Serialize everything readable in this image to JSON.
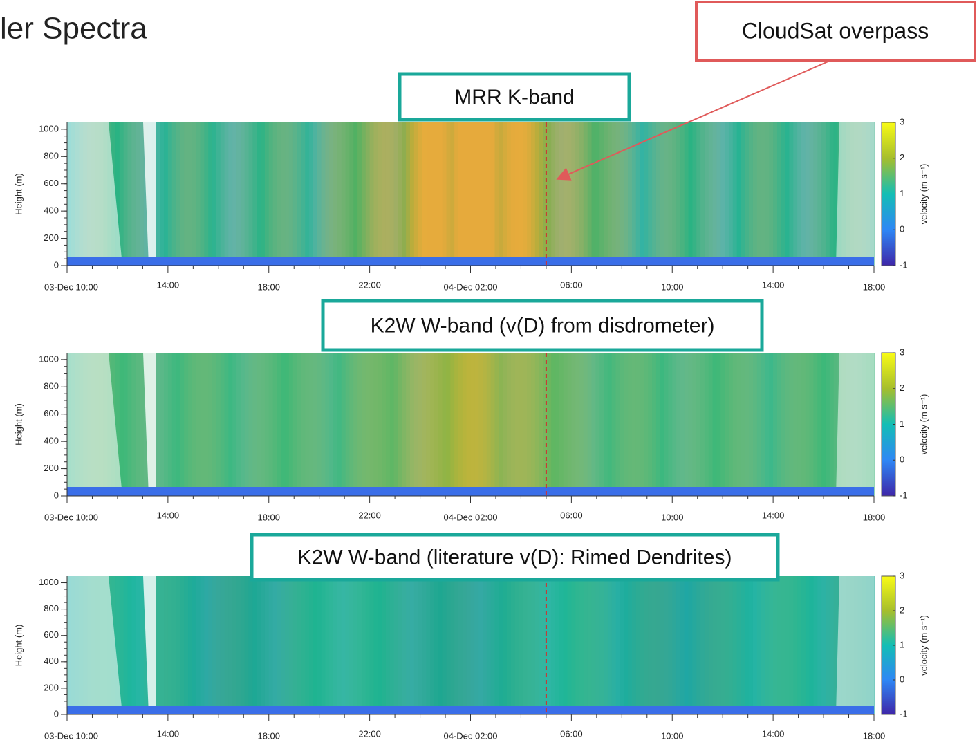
{
  "title": "ler Spectra",
  "annotation": "CloudSat overpass",
  "chart_data": [
    {
      "type": "heatmap",
      "title": "MRR K-band",
      "ylabel": "Height (m)",
      "ylim": [
        0,
        1050
      ],
      "yticks": [
        0,
        200,
        400,
        600,
        800,
        1000
      ],
      "xticks": [
        "03-Dec 10:00",
        "14:00",
        "18:00",
        "22:00",
        "04-Dec 02:00",
        "06:00",
        "10:00",
        "14:00",
        "18:00"
      ],
      "colorbar_label": "velocity (m s⁻¹)",
      "clim": [
        -1,
        3
      ],
      "cticks": [
        -1,
        0,
        1,
        2,
        3
      ]
    },
    {
      "type": "heatmap",
      "title": "K2W W-band (v(D) from disdrometer)",
      "ylabel": "Height (m)",
      "ylim": [
        0,
        1050
      ],
      "yticks": [
        0,
        200,
        400,
        600,
        800,
        1000
      ],
      "xticks": [
        "03-Dec 10:00",
        "14:00",
        "18:00",
        "22:00",
        "04-Dec 02:00",
        "06:00",
        "10:00",
        "14:00",
        "18:00"
      ],
      "colorbar_label": "velocity (m s⁻¹)",
      "clim": [
        -1,
        3
      ],
      "cticks": [
        -1,
        0,
        1,
        2,
        3
      ]
    },
    {
      "type": "heatmap",
      "title": "K2W W-band (literature v(D): Rimed Dendrites)",
      "ylabel": "Height (m)",
      "ylim": [
        0,
        1050
      ],
      "yticks": [
        0,
        200,
        400,
        600,
        800,
        1000
      ],
      "xticks": [
        "03-Dec 10:00",
        "14:00",
        "18:00",
        "22:00",
        "04-Dec 02:00",
        "06:00",
        "10:00",
        "14:00",
        "18:00"
      ],
      "colorbar_label": "velocity (m s⁻¹)",
      "clim": [
        -1,
        3
      ],
      "cticks": [
        -1,
        0,
        1,
        2,
        3
      ]
    }
  ]
}
